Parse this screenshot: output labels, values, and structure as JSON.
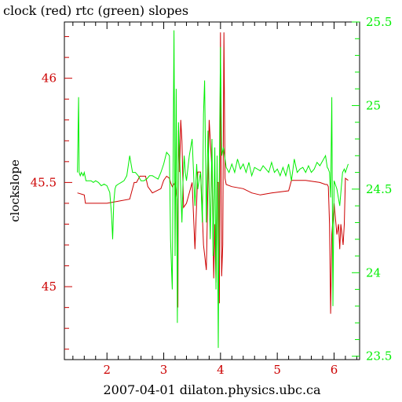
{
  "chart_data": {
    "type": "line",
    "title": "clock (red) rtc (green) slopes",
    "xlabel": "2007-04-01 dilaton.physics.ubc.ca",
    "ylabel": "clockslope",
    "xlim": [
      1.25,
      6.45
    ],
    "ylim": [
      44.65,
      46.27
    ],
    "y2lim": [
      23.48,
      25.5
    ],
    "x_ticks": [
      2,
      3,
      4,
      5,
      6
    ],
    "x_tick_labels": [
      "2",
      "3",
      "4",
      "5",
      "6"
    ],
    "y_ticks": [
      45,
      45.5,
      46
    ],
    "y_tick_labels": [
      "45",
      "45.5",
      "46"
    ],
    "y2_ticks": [
      23.5,
      24,
      24.5,
      25,
      25.5
    ],
    "y2_tick_labels": [
      "23.5",
      "24",
      "24.5",
      "25",
      "25.5"
    ],
    "grid": false,
    "colors": {
      "clock": "#cc0000",
      "rtc": "#00ee00",
      "axes": "#000000"
    },
    "series": [
      {
        "name": "clock",
        "axis": "left",
        "color": "#cc0000",
        "x": [
          1.48,
          1.6,
          1.62,
          1.85,
          2.0,
          2.2,
          2.4,
          2.48,
          2.52,
          2.58,
          2.6,
          2.68,
          2.72,
          2.8,
          2.95,
          3.0,
          3.05,
          3.1,
          3.12,
          3.15,
          3.2,
          3.23,
          3.25,
          3.26,
          3.28,
          3.3,
          3.32,
          3.35,
          3.4,
          3.45,
          3.5,
          3.55,
          3.6,
          3.65,
          3.7,
          3.75,
          3.8,
          3.85,
          3.88,
          3.9,
          3.92,
          3.94,
          3.96,
          3.98,
          4.0,
          4.02,
          4.04,
          4.06,
          4.08,
          4.1,
          4.2,
          4.4,
          4.55,
          4.7,
          4.9,
          5.2,
          5.25,
          5.5,
          5.75,
          5.85,
          5.88,
          5.9,
          5.92,
          5.94,
          5.96,
          6.0,
          6.05,
          6.08,
          6.1,
          6.12,
          6.14,
          6.16,
          6.18,
          6.2,
          6.25
        ],
        "values": [
          45.45,
          45.44,
          45.4,
          45.4,
          45.4,
          45.41,
          45.42,
          45.5,
          45.5,
          45.53,
          45.53,
          45.53,
          45.48,
          45.45,
          45.47,
          45.51,
          45.53,
          45.52,
          45.5,
          45.48,
          45.5,
          45.42,
          44.9,
          45.75,
          45.55,
          45.8,
          45.7,
          45.38,
          45.4,
          45.45,
          45.5,
          45.18,
          45.55,
          45.55,
          45.2,
          45.08,
          45.8,
          45.56,
          45.04,
          45.3,
          45.02,
          45.5,
          45.5,
          44.92,
          46.22,
          45.05,
          45.2,
          46.22,
          45.52,
          45.49,
          45.48,
          45.47,
          45.45,
          45.44,
          45.45,
          45.46,
          45.51,
          45.51,
          45.5,
          45.49,
          45.49,
          45.48,
          45.3,
          44.87,
          45.25,
          45.4,
          45.25,
          45.3,
          45.18,
          45.3,
          45.25,
          45.2,
          45.3,
          45.52,
          45.51
        ]
      },
      {
        "name": "rtc",
        "axis": "right",
        "color": "#00ee00",
        "x": [
          1.48,
          1.5,
          1.51,
          1.53,
          1.55,
          1.58,
          1.6,
          1.63,
          1.68,
          1.72,
          1.76,
          1.8,
          1.85,
          1.9,
          1.95,
          2.0,
          2.05,
          2.08,
          2.1,
          2.12,
          2.14,
          2.16,
          2.2,
          2.25,
          2.3,
          2.35,
          2.4,
          2.42,
          2.45,
          2.5,
          2.55,
          2.6,
          2.65,
          2.7,
          2.75,
          2.8,
          2.85,
          2.9,
          2.95,
          3.0,
          3.05,
          3.1,
          3.12,
          3.15,
          3.18,
          3.2,
          3.22,
          3.24,
          3.26,
          3.28,
          3.3,
          3.32,
          3.34,
          3.36,
          3.38,
          3.4,
          3.45,
          3.5,
          3.55,
          3.58,
          3.6,
          3.62,
          3.65,
          3.68,
          3.7,
          3.72,
          3.75,
          3.78,
          3.8,
          3.82,
          3.85,
          3.87,
          3.9,
          3.92,
          3.94,
          3.96,
          3.98,
          4.0,
          4.02,
          4.05,
          4.1,
          4.15,
          4.2,
          4.25,
          4.3,
          4.35,
          4.4,
          4.45,
          4.5,
          4.55,
          4.6,
          4.7,
          4.75,
          4.8,
          4.85,
          4.9,
          4.95,
          5.0,
          5.05,
          5.1,
          5.15,
          5.2,
          5.25,
          5.3,
          5.35,
          5.4,
          5.45,
          5.5,
          5.55,
          5.6,
          5.65,
          5.7,
          5.75,
          5.8,
          5.85,
          5.88,
          5.9,
          5.92,
          5.94,
          5.96,
          5.98,
          6.0,
          6.05,
          6.1,
          6.15,
          6.18,
          6.2,
          6.25
        ],
        "values": [
          24.6,
          25.05,
          24.6,
          24.58,
          24.6,
          24.58,
          24.6,
          24.55,
          24.55,
          24.55,
          24.54,
          24.55,
          24.54,
          24.52,
          24.53,
          24.52,
          24.48,
          24.35,
          24.2,
          24.42,
          24.5,
          24.52,
          24.53,
          24.54,
          24.55,
          24.58,
          24.7,
          24.66,
          24.6,
          24.6,
          24.58,
          24.55,
          24.55,
          24.56,
          24.58,
          24.58,
          24.57,
          24.56,
          24.6,
          24.65,
          24.72,
          24.7,
          24.2,
          23.9,
          25.45,
          24.1,
          25.1,
          23.7,
          24.9,
          24.7,
          24.5,
          24.3,
          24.55,
          24.7,
          24.6,
          24.55,
          24.7,
          24.8,
          24.4,
          24.65,
          24.5,
          24.55,
          24.6,
          24.3,
          24.95,
          25.15,
          24.3,
          24.85,
          24.5,
          24.2,
          24.8,
          24.1,
          24.75,
          23.9,
          24.7,
          23.55,
          24.65,
          25.35,
          24.7,
          24.75,
          24.63,
          24.6,
          24.65,
          24.6,
          24.68,
          24.62,
          24.65,
          24.6,
          24.66,
          24.58,
          24.63,
          24.61,
          24.64,
          24.62,
          24.6,
          24.66,
          24.6,
          24.62,
          24.58,
          24.63,
          24.58,
          24.65,
          24.55,
          24.68,
          24.6,
          24.62,
          24.63,
          24.6,
          24.64,
          24.6,
          24.62,
          24.66,
          24.64,
          24.67,
          24.7,
          24.63,
          24.62,
          24.6,
          24.45,
          25.05,
          23.8,
          24.55,
          24.5,
          24.4,
          24.6,
          24.62,
          24.6,
          24.65
        ]
      }
    ]
  }
}
